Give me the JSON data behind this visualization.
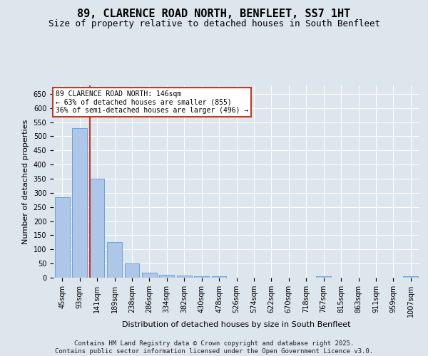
{
  "title": "89, CLARENCE ROAD NORTH, BENFLEET, SS7 1HT",
  "subtitle": "Size of property relative to detached houses in South Benfleet",
  "xlabel": "Distribution of detached houses by size in South Benfleet",
  "ylabel": "Number of detached properties",
  "categories": [
    "45sqm",
    "93sqm",
    "141sqm",
    "189sqm",
    "238sqm",
    "286sqm",
    "334sqm",
    "382sqm",
    "430sqm",
    "478sqm",
    "526sqm",
    "574sqm",
    "622sqm",
    "670sqm",
    "718sqm",
    "767sqm",
    "815sqm",
    "863sqm",
    "911sqm",
    "959sqm",
    "1007sqm"
  ],
  "values": [
    285,
    530,
    350,
    125,
    50,
    17,
    10,
    8,
    5,
    5,
    0,
    0,
    0,
    0,
    0,
    5,
    0,
    0,
    0,
    0,
    5
  ],
  "bar_color": "#aec6e8",
  "bar_edge_color": "#5b9bd5",
  "vline_index": 2,
  "vline_color": "#c0392b",
  "annotation_text": "89 CLARENCE ROAD NORTH: 146sqm\n← 63% of detached houses are smaller (855)\n36% of semi-detached houses are larger (496) →",
  "annotation_box_color": "#c0392b",
  "ylim": [
    0,
    680
  ],
  "yticks": [
    0,
    50,
    100,
    150,
    200,
    250,
    300,
    350,
    400,
    450,
    500,
    550,
    600,
    650
  ],
  "background_color": "#dde5ed",
  "plot_bg_color": "#dde5ed",
  "footer_line1": "Contains HM Land Registry data © Crown copyright and database right 2025.",
  "footer_line2": "Contains public sector information licensed under the Open Government Licence v3.0.",
  "title_fontsize": 11,
  "subtitle_fontsize": 9,
  "axis_label_fontsize": 8,
  "tick_fontsize": 7,
  "footer_fontsize": 6.5
}
